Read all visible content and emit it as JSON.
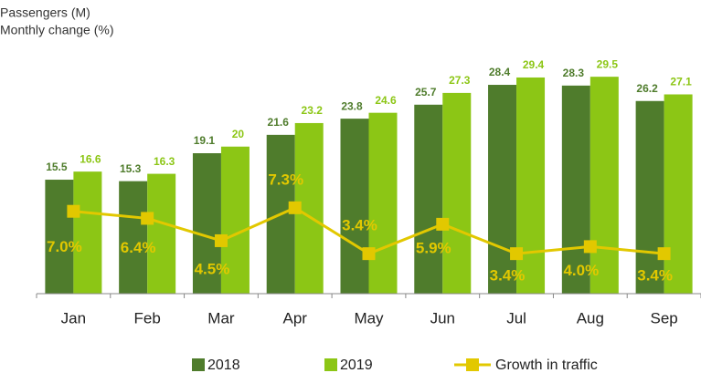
{
  "chart_data": {
    "type": "bar",
    "title": "Passengers (M)",
    "subtitle": "Monthly change (%)",
    "categories": [
      "Jan",
      "Feb",
      "Mar",
      "Apr",
      "May",
      "Jun",
      "Jul",
      "Aug",
      "Sep"
    ],
    "series": [
      {
        "name": "2018",
        "color": "#4f7c2c",
        "values": [
          15.5,
          15.3,
          19.1,
          21.6,
          23.8,
          25.7,
          28.4,
          28.3,
          26.2
        ]
      },
      {
        "name": "2019",
        "color": "#8cc615",
        "values": [
          16.6,
          16.3,
          20.0,
          23.2,
          24.6,
          27.3,
          29.4,
          29.5,
          27.1
        ]
      },
      {
        "name": "Growth in traffic",
        "type": "line",
        "axis": "y2",
        "color": "#e2c800",
        "values": [
          7.0,
          6.4,
          4.5,
          7.3,
          3.4,
          5.9,
          3.4,
          4.0,
          3.4
        ],
        "value_labels": [
          "7.0%",
          "6.4%",
          "4.5%",
          "7.3%",
          "3.4%",
          "5.9%",
          "3.4%",
          "4.0%",
          "3.4%"
        ]
      }
    ],
    "ylim": [
      0,
      32
    ],
    "y2lim": [
      0,
      20
    ],
    "legend": "bottom"
  }
}
